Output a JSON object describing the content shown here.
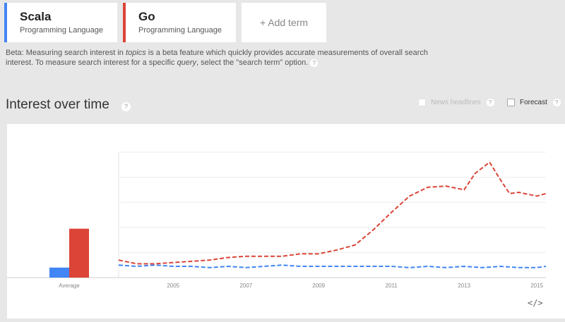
{
  "terms": [
    {
      "name": "Scala",
      "category": "Programming Language",
      "color": "#4285f4"
    },
    {
      "name": "Go",
      "category": "Programming Language",
      "color": "#db4437"
    }
  ],
  "add_term_label": "+ Add term",
  "beta_note": {
    "prefix": "Beta: Measuring search interest in ",
    "topics_word": "topics",
    "middle": " is a beta feature which quickly provides accurate measurements of overall search interest. To measure search interest for a specific ",
    "query_word": "query",
    "suffix": ", select the \"search term\" option."
  },
  "help_glyph": "?",
  "section_title": "Interest over time",
  "options": {
    "news_headlines": "News headlines",
    "forecast": "Forecast"
  },
  "embed_glyph": "</>",
  "chart_data": {
    "type": "line",
    "x_tick_labels": [
      "2005",
      "2007",
      "2009",
      "2011",
      "2013",
      "2015"
    ],
    "x_range": [
      2004.0,
      2015.75
    ],
    "y_range": [
      0,
      100
    ],
    "grid": true,
    "average": {
      "label": "Average",
      "values": [
        {
          "name": "Scala",
          "value": 8,
          "color": "#4285f4"
        },
        {
          "name": "Go",
          "value": 39,
          "color": "#db4437"
        }
      ]
    },
    "series": [
      {
        "color": "#4285f4",
        "points": [
          [
            2004.0,
            10
          ],
          [
            2004.5,
            9
          ],
          [
            2005.0,
            10
          ],
          [
            2005.5,
            9
          ],
          [
            2006.0,
            9
          ],
          [
            2006.5,
            8
          ],
          [
            2007.0,
            9
          ],
          [
            2007.5,
            8
          ],
          [
            2008.0,
            9
          ],
          [
            2008.5,
            10
          ],
          [
            2009.0,
            9
          ],
          [
            2009.5,
            9
          ],
          [
            2010.0,
            9
          ],
          [
            2010.5,
            9
          ],
          [
            2011.0,
            9
          ],
          [
            2011.5,
            9
          ],
          [
            2012.0,
            8
          ],
          [
            2012.5,
            9
          ],
          [
            2013.0,
            8
          ],
          [
            2013.5,
            9
          ],
          [
            2014.0,
            8
          ],
          [
            2014.5,
            9
          ],
          [
            2015.0,
            8
          ],
          [
            2015.5,
            8
          ],
          [
            2015.75,
            9
          ]
        ]
      },
      {
        "color": "#db4437",
        "points": [
          [
            2004.0,
            14
          ],
          [
            2004.5,
            11
          ],
          [
            2005.0,
            11
          ],
          [
            2005.5,
            12
          ],
          [
            2006.0,
            13
          ],
          [
            2006.5,
            14
          ],
          [
            2007.0,
            16
          ],
          [
            2007.5,
            17
          ],
          [
            2008.0,
            17
          ],
          [
            2008.5,
            17
          ],
          [
            2009.0,
            19
          ],
          [
            2009.5,
            19
          ],
          [
            2010.0,
            22
          ],
          [
            2010.5,
            26
          ],
          [
            2011.0,
            38
          ],
          [
            2011.5,
            52
          ],
          [
            2012.0,
            65
          ],
          [
            2012.5,
            72
          ],
          [
            2013.0,
            73
          ],
          [
            2013.5,
            70
          ],
          [
            2013.8,
            83
          ],
          [
            2014.2,
            92
          ],
          [
            2014.5,
            78
          ],
          [
            2014.75,
            67
          ],
          [
            2015.0,
            68
          ],
          [
            2015.5,
            65
          ],
          [
            2015.75,
            67
          ]
        ]
      }
    ]
  }
}
